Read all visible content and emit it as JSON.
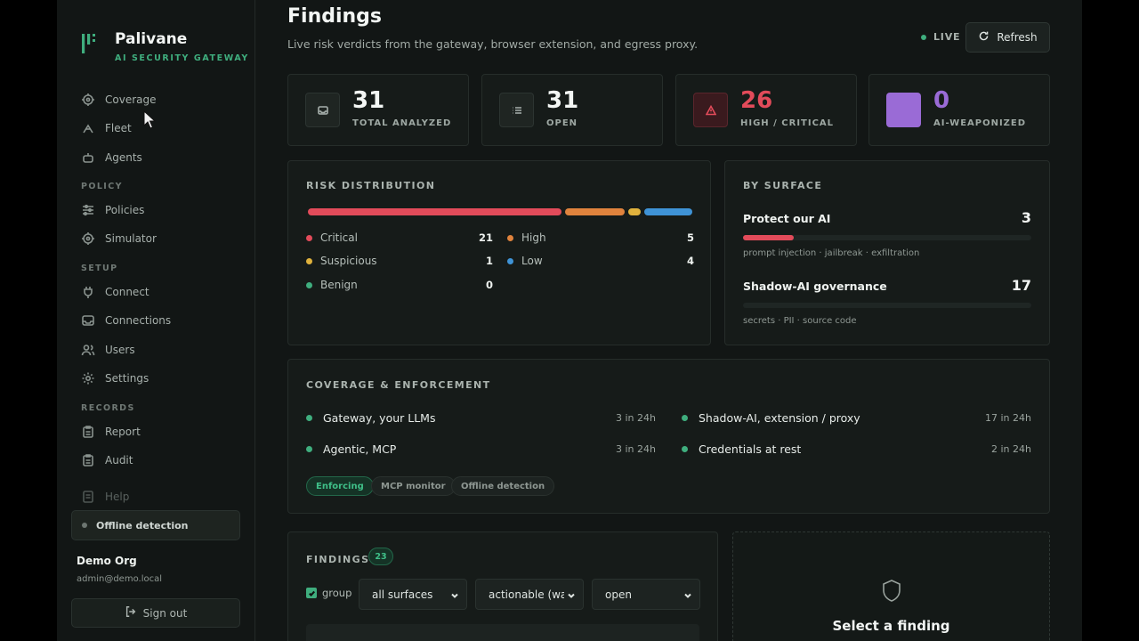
{
  "brand": {
    "name": "Palivane",
    "subtitle": "AI SECURITY GATEWAY"
  },
  "nav": {
    "items_top": [
      {
        "label": "Coverage",
        "icon": "target-icon"
      },
      {
        "label": "Fleet",
        "icon": "fleet-icon"
      },
      {
        "label": "Agents",
        "icon": "bot-icon"
      }
    ],
    "policy_title": "POLICY",
    "policy_items": [
      {
        "label": "Policies",
        "icon": "sliders-icon"
      },
      {
        "label": "Simulator",
        "icon": "target-icon"
      }
    ],
    "setup_title": "SETUP",
    "setup_items": [
      {
        "label": "Connect",
        "icon": "plug-icon"
      },
      {
        "label": "Connections",
        "icon": "inbox-icon"
      },
      {
        "label": "Users",
        "icon": "users-icon"
      },
      {
        "label": "Settings",
        "icon": "gear-icon"
      }
    ],
    "records_title": "RECORDS",
    "records_items": [
      {
        "label": "Report",
        "icon": "clipboard-icon"
      },
      {
        "label": "Audit",
        "icon": "clipboard-icon"
      }
    ],
    "help_label": "Help",
    "offline_label": "Offline detection"
  },
  "account": {
    "org": "Demo Org",
    "email": "admin@demo.local",
    "signout": "Sign out"
  },
  "header": {
    "title": "Findings",
    "subtitle": "Live risk verdicts from the gateway, browser extension, and egress proxy.",
    "live_label": "LIVE",
    "refresh_label": "Refresh"
  },
  "stats": [
    {
      "value": "31",
      "label": "TOTAL ANALYZED",
      "color": "#f3f6f4"
    },
    {
      "value": "31",
      "label": "OPEN",
      "color": "#f3f6f4"
    },
    {
      "value": "26",
      "label": "HIGH / CRITICAL",
      "color": "#e24b5a"
    },
    {
      "value": "0",
      "label": "AI-WEAPONIZED",
      "color": "#9a6bd6"
    }
  ],
  "risk": {
    "title": "RISK DISTRIBUTION",
    "legend": [
      {
        "label": "Critical",
        "value": "21",
        "color": "#e24b5a"
      },
      {
        "label": "High",
        "value": "5",
        "color": "#e0833d"
      },
      {
        "label": "Suspicious",
        "value": "1",
        "color": "#e0b23d"
      },
      {
        "label": "Low",
        "value": "4",
        "color": "#3f93d6"
      },
      {
        "label": "Benign",
        "value": "0",
        "color": "#3fae7e"
      }
    ]
  },
  "surface": {
    "title": "BY SURFACE",
    "items": [
      {
        "name": "Protect our AI",
        "value": "3",
        "desc": "prompt injection · jailbreak · exfiltration",
        "fill": 0.176
      },
      {
        "name": "Shadow-AI governance",
        "value": "17",
        "desc": "secrets · PII · source code",
        "fill": 0
      }
    ]
  },
  "coverage": {
    "title": "COVERAGE & ENFORCEMENT",
    "items": [
      {
        "label": "Gateway, your LLMs",
        "count": "3 in 24h"
      },
      {
        "label": "Shadow-AI, extension / proxy",
        "count": "17 in 24h"
      },
      {
        "label": "Agentic, MCP",
        "count": "3 in 24h"
      },
      {
        "label": "Credentials at rest",
        "count": "2 in 24h"
      }
    ],
    "chips": [
      "Enforcing",
      "MCP monitor",
      "Offline detection"
    ]
  },
  "findings": {
    "title": "FINDINGS",
    "count": "23",
    "group_label": "group",
    "filters": [
      "all surfaces",
      "actionable (wa",
      "open"
    ]
  },
  "detail": {
    "message": "Select a finding"
  }
}
